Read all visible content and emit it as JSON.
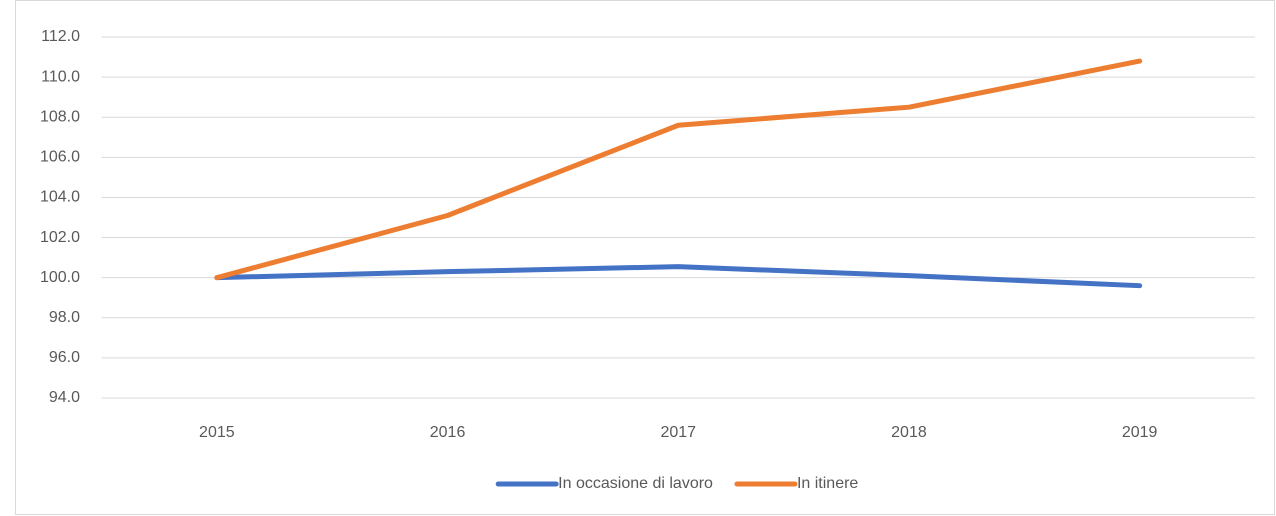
{
  "chart_data": {
    "type": "line",
    "categories": [
      "2015",
      "2016",
      "2017",
      "2018",
      "2019"
    ],
    "series": [
      {
        "name": "In occasione di lavoro",
        "color": "#4472c4",
        "values": [
          100.0,
          100.3,
          100.55,
          100.1,
          99.6
        ]
      },
      {
        "name": "In itinere",
        "color": "#ed7d31",
        "values": [
          100.0,
          103.1,
          107.6,
          108.5,
          110.8
        ]
      }
    ],
    "ylim": [
      94,
      112
    ],
    "yticks": [
      {
        "value": 94,
        "label": "94.0"
      },
      {
        "value": 96,
        "label": "96.0"
      },
      {
        "value": 98,
        "label": "98.0"
      },
      {
        "value": 100,
        "label": "100.0"
      },
      {
        "value": 102,
        "label": "102.0"
      },
      {
        "value": 104,
        "label": "104.0"
      },
      {
        "value": 106,
        "label": "106.0"
      },
      {
        "value": 108,
        "label": "108.0"
      },
      {
        "value": 110,
        "label": "110.0"
      },
      {
        "value": 112,
        "label": "112.0"
      }
    ],
    "grid": true,
    "legend": "bottom"
  }
}
